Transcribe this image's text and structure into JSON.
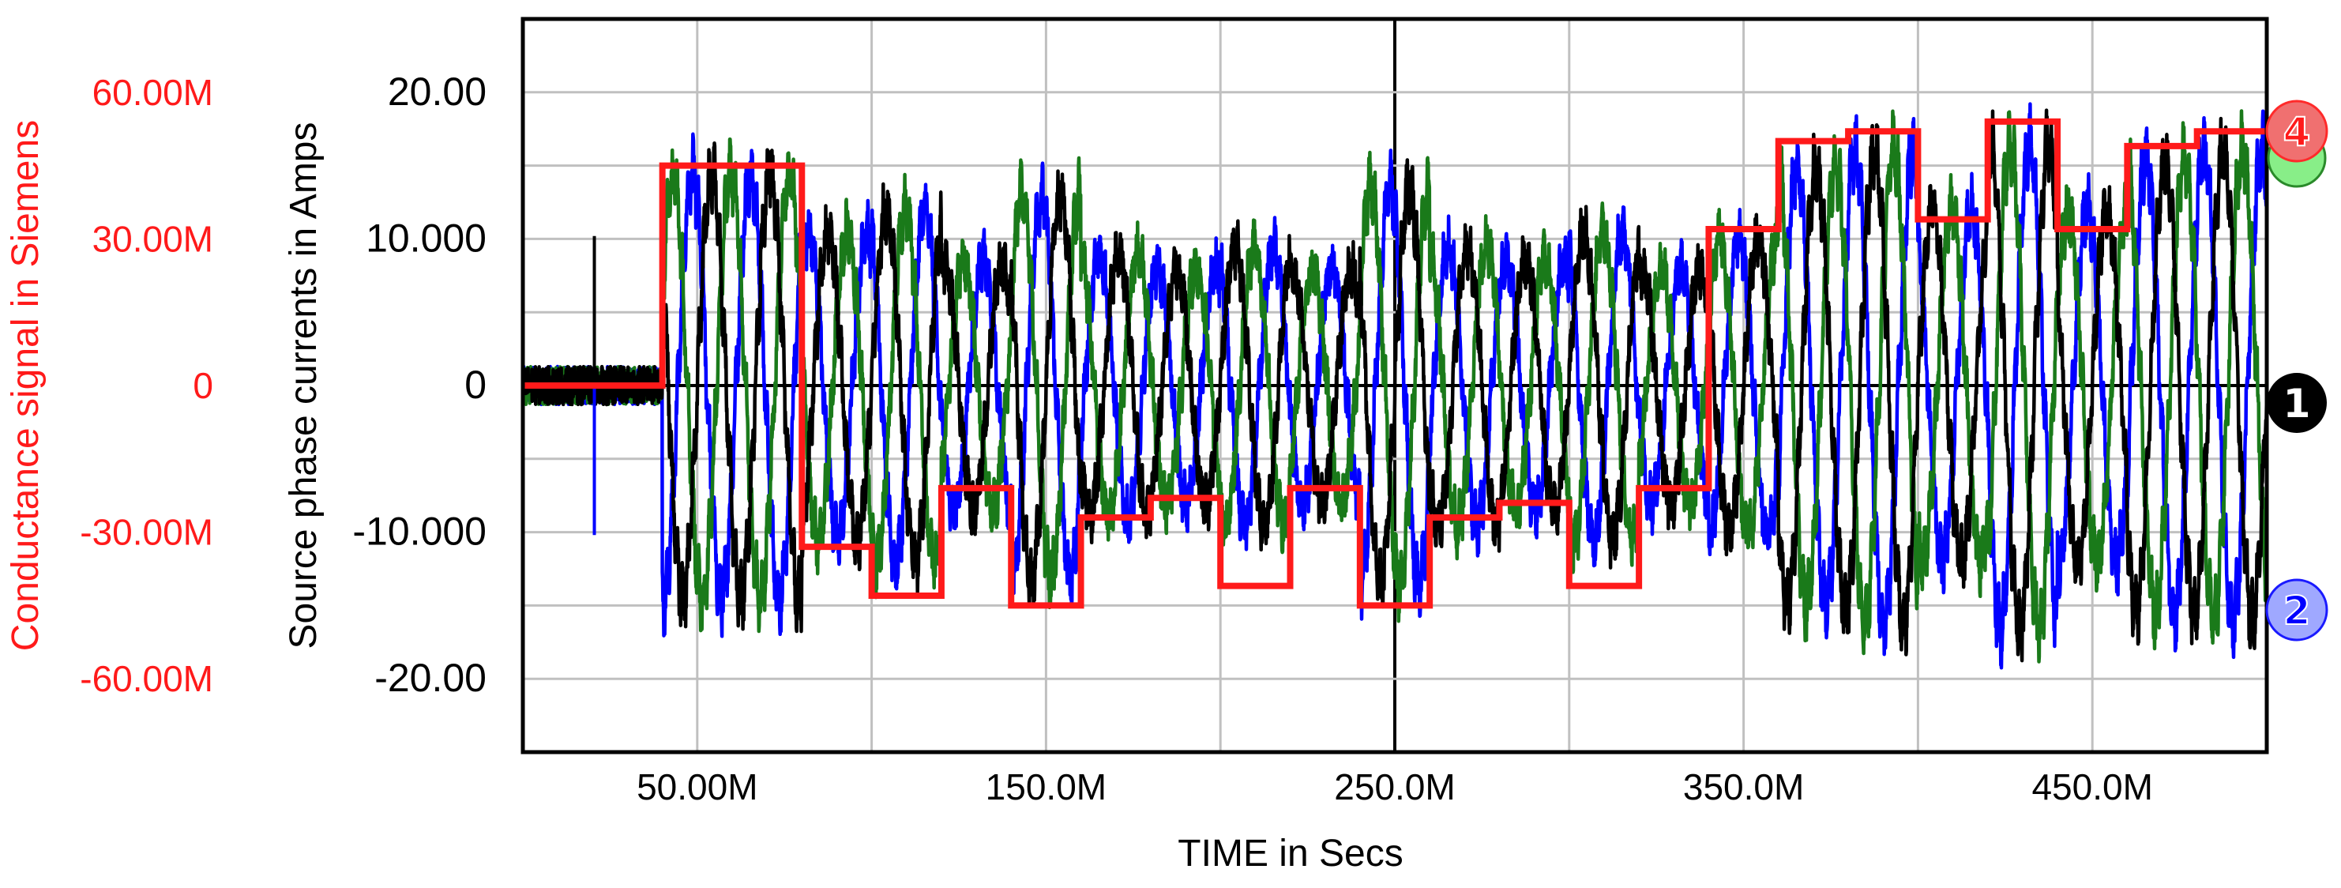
{
  "chart_data": {
    "type": "line",
    "xlabel": "TIME in Secs",
    "ylabel": "Source phase currents in Amps",
    "y2label": "Conductance signal in Siemens",
    "x_ticks": [
      {
        "value": 0.05,
        "label": "50.00M"
      },
      {
        "value": 0.15,
        "label": "150.0M"
      },
      {
        "value": 0.25,
        "label": "250.0M"
      },
      {
        "value": 0.35,
        "label": "350.0M"
      },
      {
        "value": 0.45,
        "label": "450.0M"
      }
    ],
    "y_ticks": [
      {
        "value": 20,
        "label": "20.00"
      },
      {
        "value": 10,
        "label": "10.000"
      },
      {
        "value": 0,
        "label": "0"
      },
      {
        "value": -10,
        "label": "-10.000"
      },
      {
        "value": -20,
        "label": "-20.00"
      }
    ],
    "y2_ticks": [
      {
        "value": 0.06,
        "label": "60.00M"
      },
      {
        "value": 0.03,
        "label": "30.00M"
      },
      {
        "value": 0,
        "label": "0"
      },
      {
        "value": -0.03,
        "label": "-30.00M"
      },
      {
        "value": -0.06,
        "label": "-60.00M"
      }
    ],
    "xlim": [
      0,
      0.5
    ],
    "ylim": [
      -25,
      25
    ],
    "y2lim": [
      -0.075,
      0.075
    ],
    "grid": true,
    "series": [
      {
        "marker": "1",
        "color": "#000000",
        "frequency_hz": 60,
        "phase_deg": 0
      },
      {
        "marker": "2",
        "color": "#0000ff",
        "frequency_hz": 60,
        "phase_deg": 120
      },
      {
        "marker": "3",
        "color": "#1a7a1a",
        "frequency_hz": 60,
        "phase_deg": -120
      },
      {
        "marker": "4",
        "color": "#ff1a1a",
        "axis": "right",
        "step_x": [
          0,
          0.04,
          0.08,
          0.1,
          0.12,
          0.14,
          0.16,
          0.18,
          0.2,
          0.22,
          0.24,
          0.26,
          0.28,
          0.3,
          0.32,
          0.34,
          0.36,
          0.38,
          0.4,
          0.42,
          0.44,
          0.46,
          0.48,
          0.5
        ],
        "step_y": [
          0,
          0.045,
          -0.033,
          -0.043,
          -0.021,
          -0.045,
          -0.027,
          -0.023,
          -0.041,
          -0.021,
          -0.045,
          -0.027,
          -0.024,
          -0.041,
          -0.021,
          0.032,
          0.05,
          0.052,
          0.034,
          0.054,
          0.032,
          0.049,
          0.052,
          0.052
        ]
      }
    ],
    "amplitude_x": [
      0,
      0.04,
      0.08,
      0.1,
      0.12,
      0.14,
      0.16,
      0.18,
      0.2,
      0.22,
      0.24,
      0.26,
      0.28,
      0.3,
      0.32,
      0.34,
      0.36,
      0.38,
      0.4,
      0.42,
      0.44,
      0.46,
      0.48,
      0.5
    ],
    "amplitude_y": [
      1.0,
      14.5,
      10.5,
      12.0,
      8.5,
      13.0,
      9.0,
      8.0,
      9.5,
      8.0,
      13.5,
      9.5,
      8.5,
      10.5,
      8.0,
      10.0,
      15.0,
      16.0,
      12.0,
      16.5,
      12.0,
      15.5,
      16.0,
      16.0
    ]
  },
  "markers": {
    "m1": "1",
    "m2": "2",
    "m4": "4"
  },
  "colors": {
    "axis": "#000000",
    "grid": "#c0c0c0",
    "red_axis": "#ff1a1a"
  }
}
